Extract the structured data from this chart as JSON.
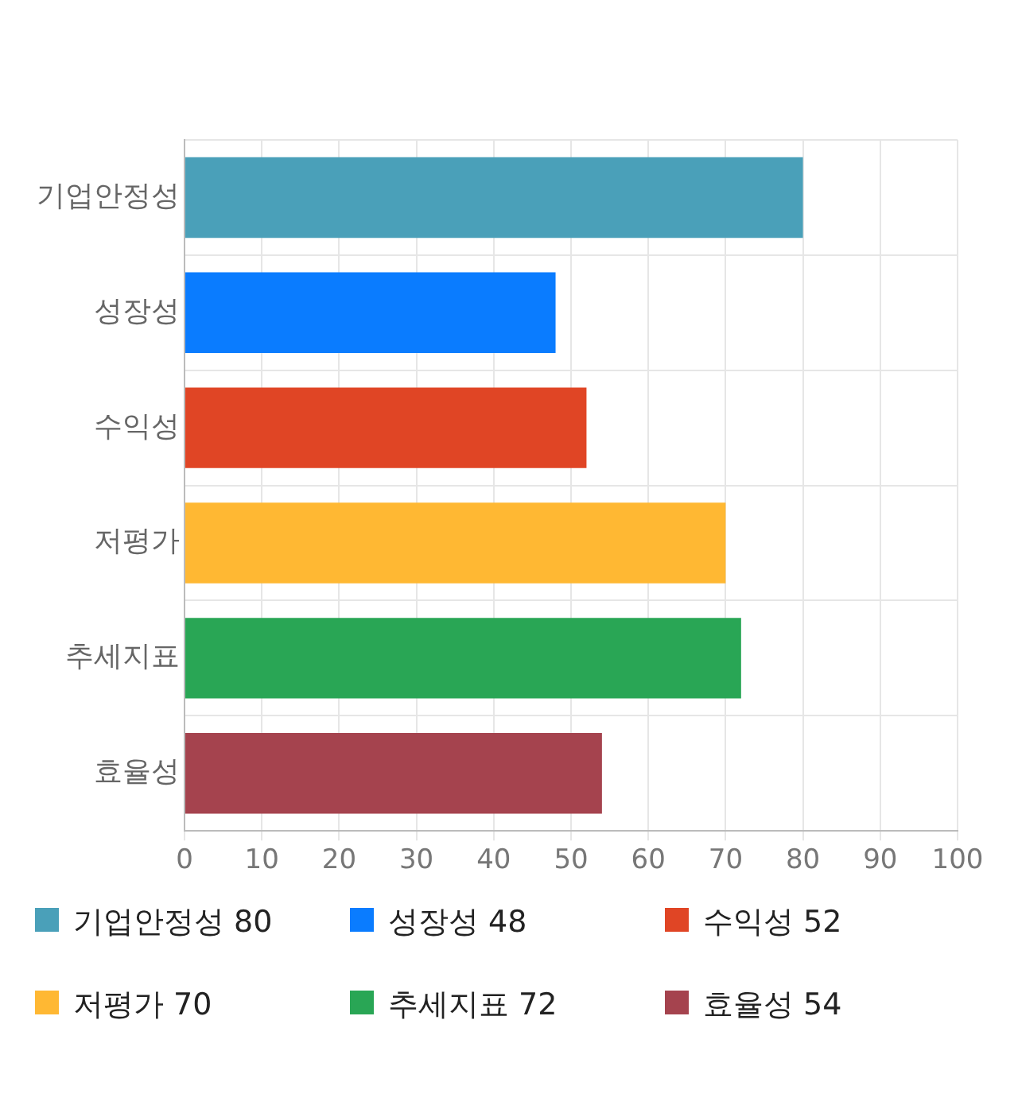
{
  "chart_data": {
    "type": "bar",
    "orientation": "horizontal",
    "categories": [
      "기업안정성",
      "성장성",
      "수익성",
      "저평가",
      "추세지표",
      "효율성"
    ],
    "values": [
      80,
      48,
      52,
      70,
      72,
      54
    ],
    "colors": [
      "#4aa0b9",
      "#0a7cff",
      "#e04525",
      "#ffb833",
      "#29a655",
      "#a5434e"
    ],
    "xlim": [
      0,
      100
    ],
    "xticks": [
      0,
      10,
      20,
      30,
      40,
      50,
      60,
      70,
      80,
      90,
      100
    ],
    "grid": true,
    "value_labels": [
      "80",
      "48",
      "52",
      "70",
      "72",
      "54"
    ]
  }
}
